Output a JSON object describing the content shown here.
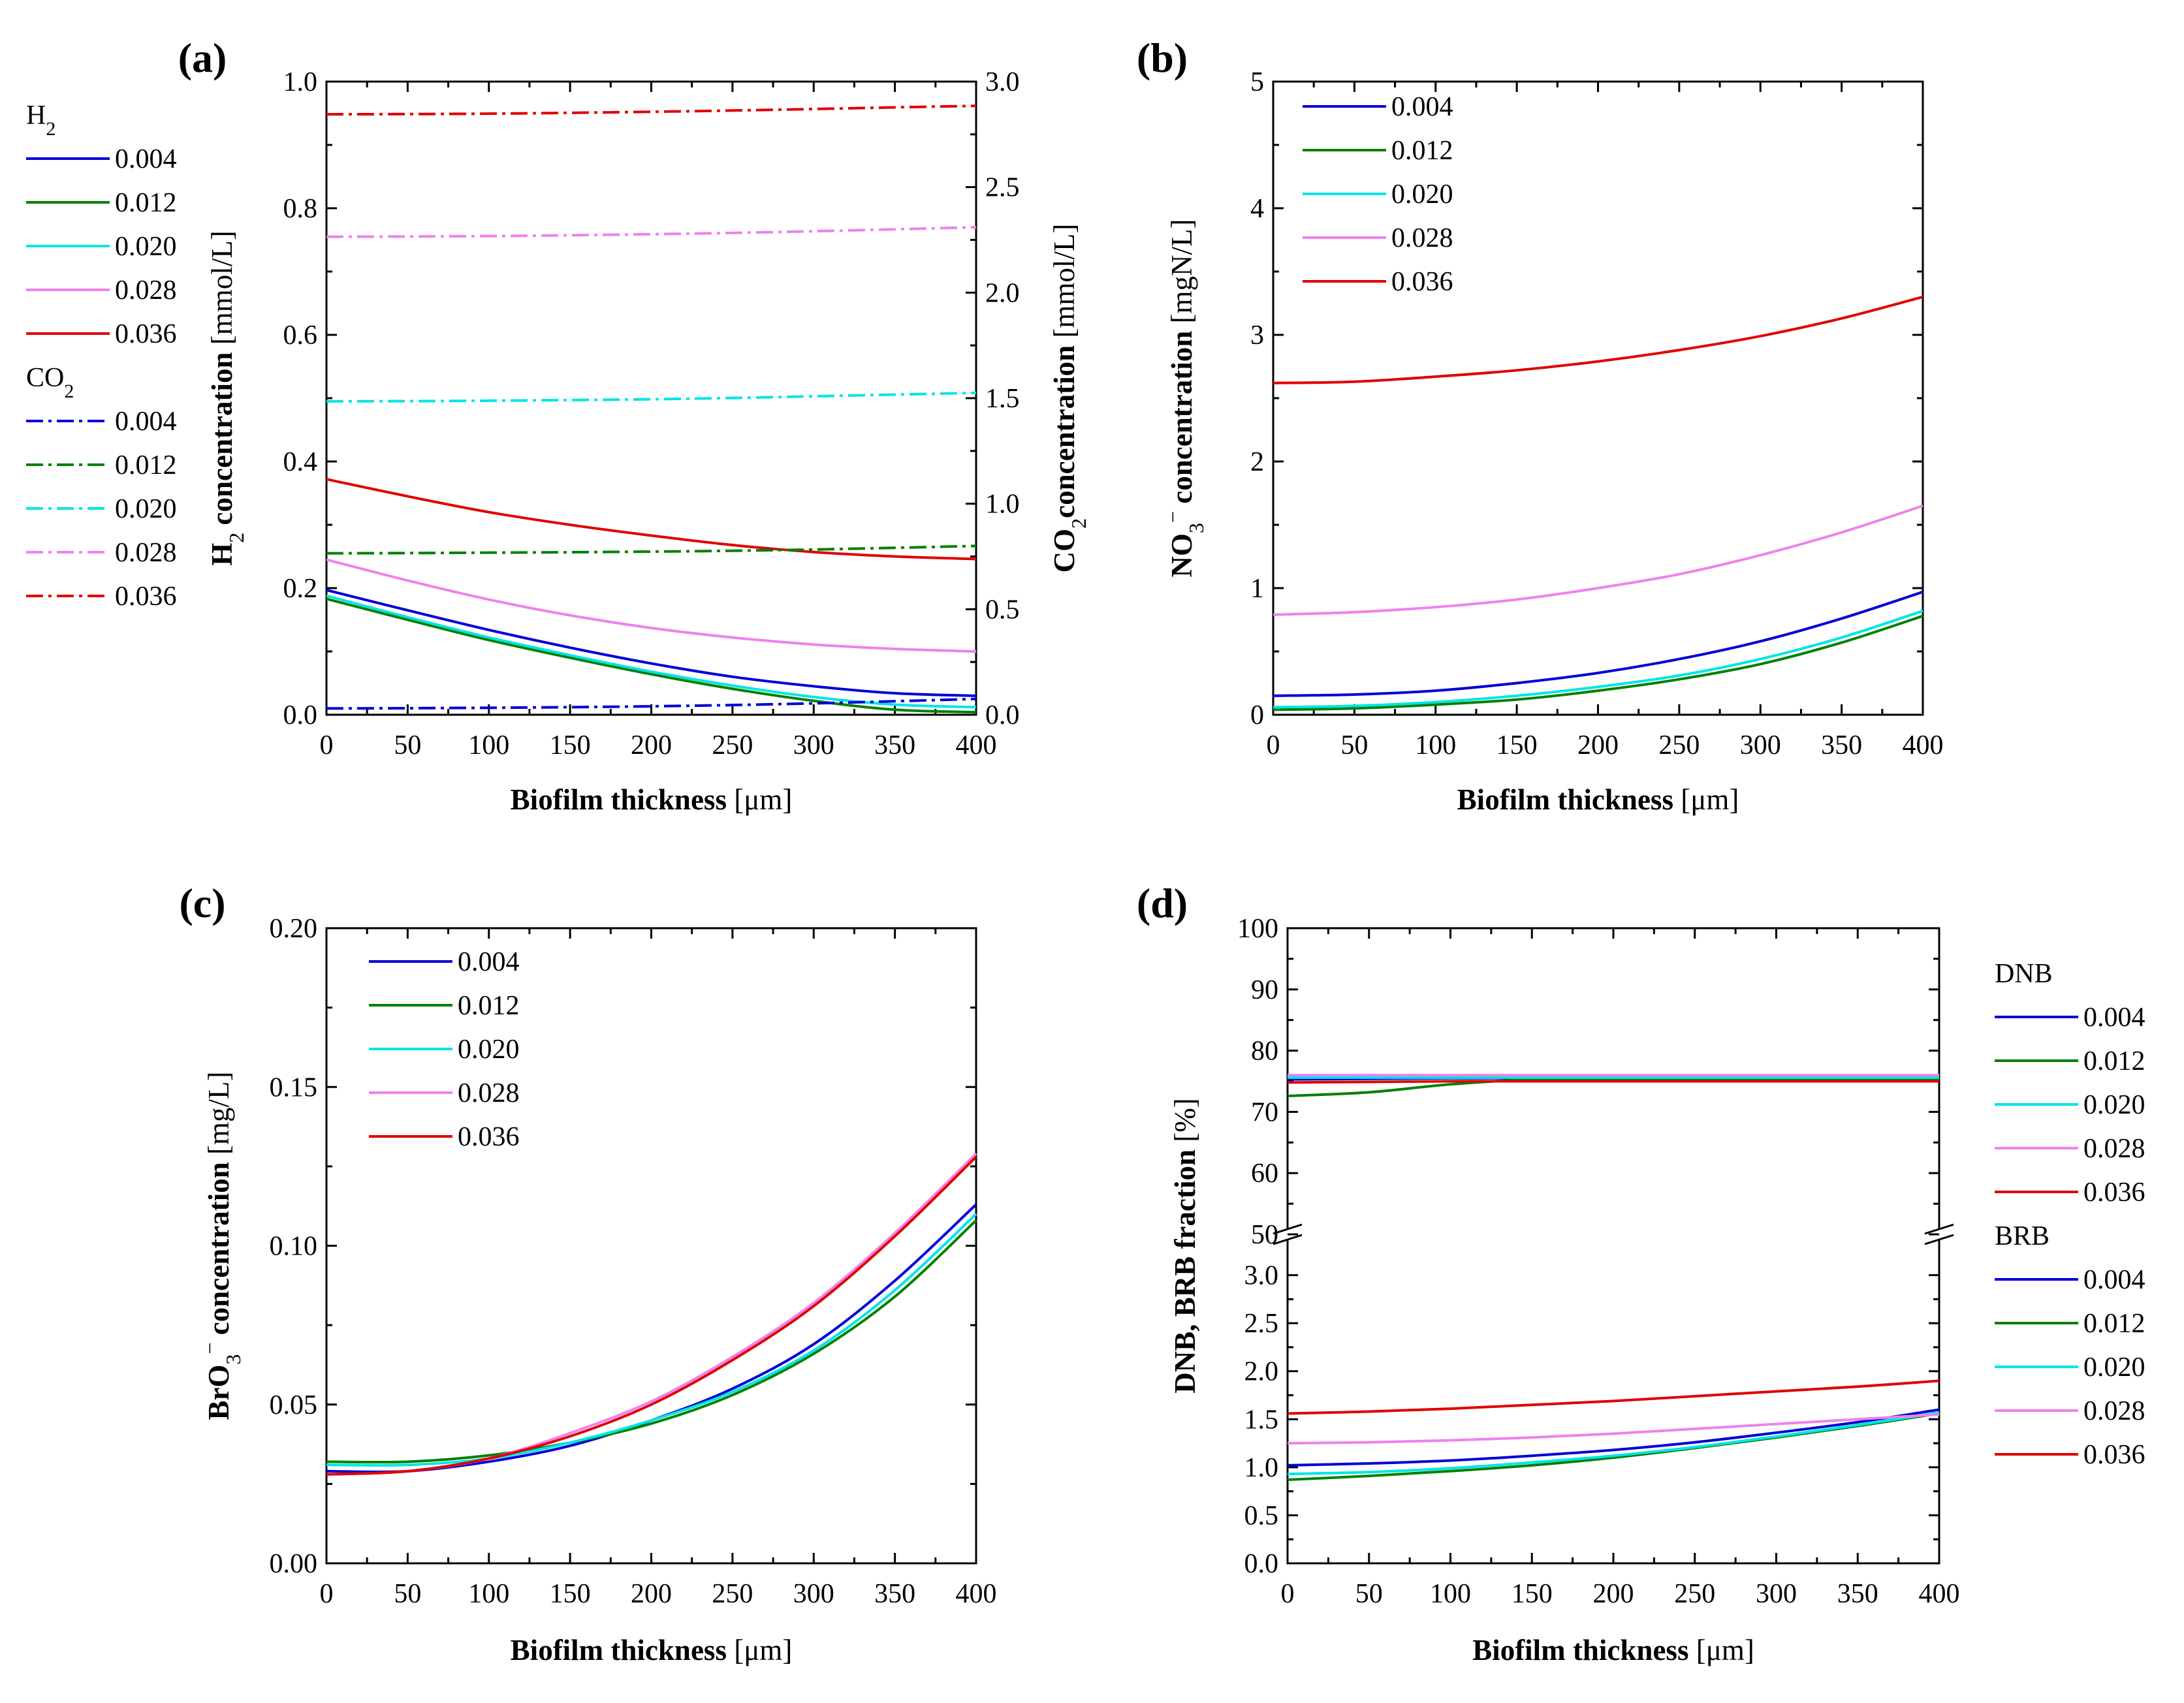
{
  "colors": {
    "0.004": "#0000d8",
    "0.012": "#008000",
    "0.020": "#00e5e5",
    "0.028": "#ee82ee",
    "0.036": "#e00000"
  },
  "chart_data": [
    {
      "id": "a",
      "type": "line",
      "panel_label": "(a)",
      "xlabel_bold": "Biofilm thickness",
      "xlabel_unit": "[μm]",
      "ylabel_main": "H",
      "ylabel_sub": "2",
      "ylabel_bold": " concentration",
      "ylabel_unit": "[mmol/L]",
      "y2label_main": "CO",
      "y2label_sub": "2",
      "y2label_bold": "concentration",
      "y2label_unit": "[mmol/L]",
      "xlim": [
        0,
        400
      ],
      "ylim": [
        0,
        1.0
      ],
      "y2lim": [
        0,
        3.0
      ],
      "xticks": [
        "0",
        "50",
        "100",
        "150",
        "200",
        "250",
        "300",
        "350",
        "400"
      ],
      "yticks": [
        "0.0",
        "0.2",
        "0.4",
        "0.6",
        "0.8",
        "1.0"
      ],
      "y2ticks": [
        "0.0",
        "0.5",
        "1.0",
        "1.5",
        "2.0",
        "2.5",
        "3.0"
      ],
      "legend_groups": [
        {
          "title": "H",
          "title_sub": "2",
          "labels": [
            "0.004",
            "0.012",
            "0.020",
            "0.028",
            "0.036"
          ],
          "dashed": false
        },
        {
          "title": "CO",
          "title_sub": "2",
          "labels": [
            "0.004",
            "0.012",
            "0.020",
            "0.028",
            "0.036"
          ],
          "dashed": true
        }
      ],
      "x": [
        0,
        50,
        100,
        150,
        200,
        250,
        300,
        350,
        400
      ],
      "series": [
        {
          "name": "0.004",
          "group": "H2",
          "axis": "left",
          "values": [
            0.197,
            0.165,
            0.134,
            0.106,
            0.081,
            0.06,
            0.045,
            0.034,
            0.03
          ]
        },
        {
          "name": "0.012",
          "group": "H2",
          "axis": "left",
          "values": [
            0.183,
            0.15,
            0.118,
            0.09,
            0.064,
            0.041,
            0.022,
            0.008,
            0.004
          ]
        },
        {
          "name": "0.020",
          "group": "H2",
          "axis": "left",
          "values": [
            0.188,
            0.154,
            0.122,
            0.094,
            0.068,
            0.046,
            0.028,
            0.016,
            0.012
          ]
        },
        {
          "name": "0.028",
          "group": "H2",
          "axis": "left",
          "values": [
            0.245,
            0.212,
            0.182,
            0.157,
            0.137,
            0.122,
            0.111,
            0.104,
            0.1
          ]
        },
        {
          "name": "0.036",
          "group": "H2",
          "axis": "left",
          "values": [
            0.372,
            0.345,
            0.32,
            0.3,
            0.283,
            0.268,
            0.257,
            0.25,
            0.246
          ]
        },
        {
          "name": "0.004",
          "group": "CO2",
          "axis": "right",
          "values": [
            0.03,
            0.031,
            0.033,
            0.036,
            0.04,
            0.046,
            0.054,
            0.064,
            0.075
          ]
        },
        {
          "name": "0.012",
          "group": "CO2",
          "axis": "right",
          "values": [
            0.765,
            0.766,
            0.768,
            0.77,
            0.773,
            0.777,
            0.783,
            0.791,
            0.8
          ]
        },
        {
          "name": "0.020",
          "group": "CO2",
          "axis": "right",
          "values": [
            1.485,
            1.486,
            1.488,
            1.491,
            1.495,
            1.501,
            1.509,
            1.517,
            1.525
          ]
        },
        {
          "name": "0.028",
          "group": "CO2",
          "axis": "right",
          "values": [
            2.265,
            2.266,
            2.268,
            2.272,
            2.277,
            2.283,
            2.291,
            2.3,
            2.31
          ]
        },
        {
          "name": "0.036",
          "group": "CO2",
          "axis": "right",
          "values": [
            2.845,
            2.846,
            2.848,
            2.852,
            2.857,
            2.863,
            2.87,
            2.878,
            2.885
          ]
        }
      ]
    },
    {
      "id": "b",
      "type": "line",
      "panel_label": "(b)",
      "xlabel_bold": "Biofilm thickness",
      "xlabel_unit": "[μm]",
      "ylabel_main": "NO",
      "ylabel_sub": "3",
      "ylabel_sup": "−",
      "ylabel_bold": " concentration",
      "ylabel_unit": "[mgN/L]",
      "xlim": [
        0,
        400
      ],
      "ylim": [
        0,
        5
      ],
      "xticks": [
        "0",
        "50",
        "100",
        "150",
        "200",
        "250",
        "300",
        "350",
        "400"
      ],
      "yticks": [
        "0",
        "1",
        "2",
        "3",
        "4",
        "5"
      ],
      "legend_groups": [
        {
          "title": "",
          "labels": [
            "0.004",
            "0.012",
            "0.020",
            "0.028",
            "0.036"
          ],
          "dashed": false
        }
      ],
      "x": [
        0,
        50,
        100,
        150,
        200,
        250,
        300,
        350,
        400
      ],
      "series": [
        {
          "name": "0.004",
          "values": [
            0.15,
            0.16,
            0.19,
            0.25,
            0.33,
            0.44,
            0.58,
            0.76,
            0.97
          ]
        },
        {
          "name": "0.012",
          "values": [
            0.04,
            0.05,
            0.08,
            0.12,
            0.19,
            0.28,
            0.4,
            0.57,
            0.78
          ]
        },
        {
          "name": "0.020",
          "values": [
            0.06,
            0.07,
            0.1,
            0.15,
            0.22,
            0.31,
            0.44,
            0.61,
            0.82
          ]
        },
        {
          "name": "0.028",
          "values": [
            0.79,
            0.81,
            0.85,
            0.91,
            1.0,
            1.11,
            1.26,
            1.44,
            1.65
          ]
        },
        {
          "name": "0.036",
          "values": [
            2.62,
            2.63,
            2.67,
            2.72,
            2.79,
            2.88,
            2.99,
            3.13,
            3.3
          ]
        }
      ]
    },
    {
      "id": "c",
      "type": "line",
      "panel_label": "(c)",
      "xlabel_bold": "Biofilm thickness",
      "xlabel_unit": "[μm]",
      "ylabel_main": "BrO",
      "ylabel_sub": "3",
      "ylabel_sup": "−",
      "ylabel_bold": " concentration",
      "ylabel_unit": "[mg/L]",
      "xlim": [
        0,
        400
      ],
      "ylim": [
        0,
        0.2
      ],
      "xticks": [
        "0",
        "50",
        "100",
        "150",
        "200",
        "250",
        "300",
        "350",
        "400"
      ],
      "yticks": [
        "0.00",
        "0.05",
        "0.10",
        "0.15",
        "0.20"
      ],
      "legend_groups": [
        {
          "title": "",
          "labels": [
            "0.004",
            "0.012",
            "0.020",
            "0.028",
            "0.036"
          ],
          "dashed": false
        }
      ],
      "x": [
        0,
        50,
        100,
        150,
        200,
        250,
        300,
        350,
        400
      ],
      "series": [
        {
          "name": "0.004",
          "values": [
            0.029,
            0.029,
            0.032,
            0.037,
            0.045,
            0.055,
            0.069,
            0.089,
            0.113
          ]
        },
        {
          "name": "0.012",
          "values": [
            0.032,
            0.032,
            0.034,
            0.038,
            0.044,
            0.053,
            0.066,
            0.084,
            0.108
          ]
        },
        {
          "name": "0.020",
          "values": [
            0.031,
            0.031,
            0.033,
            0.038,
            0.045,
            0.054,
            0.067,
            0.086,
            0.11
          ]
        },
        {
          "name": "0.028",
          "values": [
            0.028,
            0.029,
            0.033,
            0.041,
            0.051,
            0.065,
            0.082,
            0.104,
            0.129
          ]
        },
        {
          "name": "0.036",
          "values": [
            0.028,
            0.029,
            0.033,
            0.04,
            0.05,
            0.064,
            0.081,
            0.103,
            0.128
          ]
        }
      ]
    },
    {
      "id": "d",
      "type": "line",
      "panel_label": "(d)",
      "xlabel_bold": "Biofilm thickness",
      "xlabel_unit": "[μm]",
      "ylabel_main": "DNB, BRB fraction",
      "ylabel_unit": "[%]",
      "xlim": [
        0,
        400
      ],
      "ylim_upper": [
        50,
        100
      ],
      "ylim_lower": [
        0,
        3.5
      ],
      "xticks": [
        "0",
        "50",
        "100",
        "150",
        "200",
        "250",
        "300",
        "350",
        "400"
      ],
      "yticks_upper": [
        "50",
        "60",
        "70",
        "80",
        "90",
        "100"
      ],
      "yticks_lower": [
        "0.0",
        "0.5",
        "1.0",
        "1.5",
        "2.0",
        "2.5",
        "3.0"
      ],
      "legend_groups": [
        {
          "title": "DNB",
          "labels": [
            "0.004",
            "0.012",
            "0.020",
            "0.028",
            "0.036"
          ],
          "dashed": false
        },
        {
          "title": "BRB",
          "labels": [
            "0.004",
            "0.012",
            "0.020",
            "0.028",
            "0.036"
          ],
          "dashed": false
        }
      ],
      "x": [
        0,
        50,
        100,
        150,
        200,
        250,
        300,
        350,
        400
      ],
      "series": [
        {
          "name": "0.004",
          "group": "DNB",
          "segment": "upper",
          "values": [
            75.3,
            75.4,
            75.5,
            75.5,
            75.5,
            75.5,
            75.5,
            75.5,
            75.5
          ]
        },
        {
          "name": "0.012",
          "group": "DNB",
          "segment": "upper",
          "values": [
            72.6,
            73.2,
            74.5,
            75.3,
            75.4,
            75.4,
            75.4,
            75.4,
            75.4
          ]
        },
        {
          "name": "0.020",
          "group": "DNB",
          "segment": "upper",
          "values": [
            75.6,
            75.6,
            75.6,
            75.6,
            75.6,
            75.6,
            75.6,
            75.6,
            75.6
          ]
        },
        {
          "name": "0.028",
          "group": "DNB",
          "segment": "upper",
          "values": [
            76.0,
            76.0,
            76.0,
            76.0,
            76.0,
            76.0,
            76.0,
            76.0,
            76.0
          ]
        },
        {
          "name": "0.036",
          "group": "DNB",
          "segment": "upper",
          "values": [
            74.8,
            74.9,
            75.0,
            75.0,
            75.0,
            75.0,
            75.0,
            75.0,
            75.0
          ]
        },
        {
          "name": "0.004",
          "group": "BRB",
          "segment": "lower",
          "values": [
            1.02,
            1.04,
            1.07,
            1.12,
            1.18,
            1.26,
            1.36,
            1.47,
            1.6
          ]
        },
        {
          "name": "0.012",
          "group": "BRB",
          "segment": "lower",
          "values": [
            0.87,
            0.91,
            0.96,
            1.02,
            1.1,
            1.2,
            1.31,
            1.43,
            1.56
          ]
        },
        {
          "name": "0.020",
          "group": "BRB",
          "segment": "lower",
          "values": [
            0.93,
            0.95,
            0.99,
            1.05,
            1.12,
            1.21,
            1.32,
            1.44,
            1.57
          ]
        },
        {
          "name": "0.028",
          "group": "BRB",
          "segment": "lower",
          "values": [
            1.25,
            1.26,
            1.28,
            1.31,
            1.35,
            1.4,
            1.45,
            1.5,
            1.55
          ]
        },
        {
          "name": "0.036",
          "group": "BRB",
          "segment": "lower",
          "values": [
            1.56,
            1.58,
            1.61,
            1.65,
            1.69,
            1.74,
            1.79,
            1.84,
            1.9
          ]
        }
      ]
    }
  ]
}
